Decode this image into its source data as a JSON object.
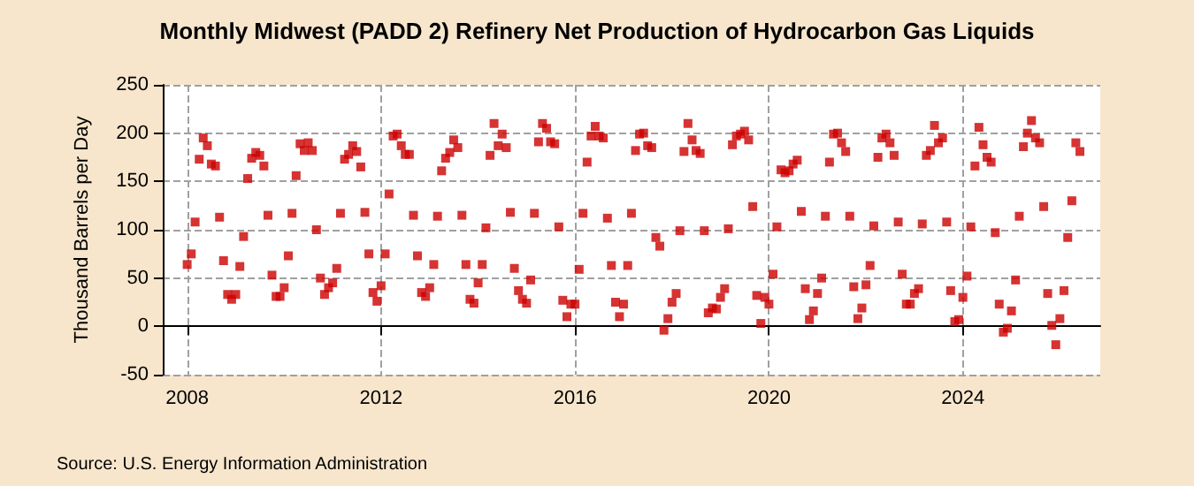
{
  "chart_data": {
    "type": "scatter",
    "title": "Monthly Midwest (PADD 2) Refinery Net Production of Hydrocarbon Gas Liquids",
    "ylabel": "Thousand Barrels per Day",
    "annotations": [
      "Source: U.S. Energy Information Administration"
    ],
    "marker": "square",
    "grid": true,
    "xlim": [
      "2007-07",
      "2026-11"
    ],
    "xticks": [
      "2008",
      "2012",
      "2016",
      "2020",
      "2024"
    ],
    "ylim": [
      -50,
      250
    ],
    "yticks": [
      -50,
      0,
      50,
      100,
      150,
      200,
      250
    ],
    "series": [
      {
        "color": "#cc0000",
        "x": [
          "2008-01",
          "2008-02",
          "2008-03",
          "2008-04",
          "2008-05",
          "2008-06",
          "2008-07",
          "2008-08",
          "2008-09",
          "2008-10",
          "2008-11",
          "2008-12",
          "2009-01",
          "2009-02",
          "2009-03",
          "2009-04",
          "2009-05",
          "2009-06",
          "2009-07",
          "2009-08",
          "2009-09",
          "2009-10",
          "2009-11",
          "2009-12",
          "2010-01",
          "2010-02",
          "2010-03",
          "2010-04",
          "2010-05",
          "2010-06",
          "2010-07",
          "2010-08",
          "2010-09",
          "2010-10",
          "2010-11",
          "2010-12",
          "2011-01",
          "2011-02",
          "2011-03",
          "2011-04",
          "2011-05",
          "2011-06",
          "2011-07",
          "2011-08",
          "2011-09",
          "2011-10",
          "2011-11",
          "2011-12",
          "2012-01",
          "2012-02",
          "2012-03",
          "2012-04",
          "2012-05",
          "2012-06",
          "2012-07",
          "2012-08",
          "2012-09",
          "2012-10",
          "2012-11",
          "2012-12",
          "2013-01",
          "2013-02",
          "2013-03",
          "2013-04",
          "2013-05",
          "2013-06",
          "2013-07",
          "2013-08",
          "2013-09",
          "2013-10",
          "2013-11",
          "2013-12",
          "2014-01",
          "2014-02",
          "2014-03",
          "2014-04",
          "2014-05",
          "2014-06",
          "2014-07",
          "2014-08",
          "2014-09",
          "2014-10",
          "2014-11",
          "2014-12",
          "2015-01",
          "2015-02",
          "2015-03",
          "2015-04",
          "2015-05",
          "2015-06",
          "2015-07",
          "2015-08",
          "2015-09",
          "2015-10",
          "2015-11",
          "2015-12",
          "2016-01",
          "2016-02",
          "2016-03",
          "2016-04",
          "2016-05",
          "2016-06",
          "2016-07",
          "2016-08",
          "2016-09",
          "2016-10",
          "2016-11",
          "2016-12",
          "2017-01",
          "2017-02",
          "2017-03",
          "2017-04",
          "2017-05",
          "2017-06",
          "2017-07",
          "2017-08",
          "2017-09",
          "2017-10",
          "2017-11",
          "2017-12",
          "2018-01",
          "2018-02",
          "2018-03",
          "2018-04",
          "2018-05",
          "2018-06",
          "2018-07",
          "2018-08",
          "2018-09",
          "2018-10",
          "2018-11",
          "2018-12",
          "2019-01",
          "2019-02",
          "2019-03",
          "2019-04",
          "2019-05",
          "2019-06",
          "2019-07",
          "2019-08",
          "2019-09",
          "2019-10",
          "2019-11",
          "2019-12",
          "2020-01",
          "2020-02",
          "2020-03",
          "2020-04",
          "2020-05",
          "2020-06",
          "2020-07",
          "2020-08",
          "2020-09",
          "2020-10",
          "2020-11",
          "2020-12",
          "2021-01",
          "2021-02",
          "2021-03",
          "2021-04",
          "2021-05",
          "2021-06",
          "2021-07",
          "2021-08",
          "2021-09",
          "2021-10",
          "2021-11",
          "2021-12",
          "2022-01",
          "2022-02",
          "2022-03",
          "2022-04",
          "2022-05",
          "2022-06",
          "2022-07",
          "2022-08",
          "2022-09",
          "2022-10",
          "2022-11",
          "2022-12",
          "2023-01",
          "2023-02",
          "2023-03",
          "2023-04",
          "2023-05",
          "2023-06",
          "2023-07",
          "2023-08",
          "2023-09",
          "2023-10",
          "2023-11",
          "2023-12",
          "2024-01",
          "2024-02",
          "2024-03",
          "2024-04",
          "2024-05",
          "2024-06",
          "2024-07",
          "2024-08",
          "2024-09",
          "2024-10",
          "2024-11",
          "2024-12",
          "2025-01",
          "2025-02",
          "2025-03",
          "2025-04",
          "2025-05",
          "2025-06",
          "2025-07",
          "2025-08",
          "2025-09",
          "2025-10",
          "2025-11",
          "2025-12",
          "2026-01",
          "2026-02",
          "2026-03",
          "2026-04",
          "2026-05",
          "2026-06"
        ],
        "values": [
          64,
          75,
          108,
          173,
          195,
          187,
          168,
          166,
          113,
          68,
          33,
          28,
          33,
          62,
          93,
          153,
          174,
          180,
          177,
          166,
          115,
          53,
          31,
          31,
          40,
          73,
          117,
          156,
          189,
          182,
          190,
          182,
          100,
          50,
          33,
          40,
          45,
          60,
          117,
          173,
          178,
          187,
          181,
          165,
          118,
          75,
          35,
          26,
          42,
          75,
          137,
          197,
          199,
          187,
          178,
          178,
          115,
          73,
          35,
          31,
          40,
          64,
          114,
          161,
          174,
          180,
          193,
          185,
          115,
          64,
          28,
          24,
          45,
          64,
          102,
          177,
          210,
          187,
          199,
          185,
          118,
          60,
          37,
          28,
          24,
          48,
          117,
          191,
          210,
          205,
          191,
          189,
          103,
          27,
          10,
          23,
          23,
          59,
          117,
          170,
          197,
          207,
          197,
          195,
          112,
          63,
          25,
          10,
          23,
          63,
          117,
          182,
          199,
          200,
          187,
          185,
          92,
          83,
          -4,
          8,
          25,
          34,
          99,
          181,
          210,
          193,
          182,
          179,
          99,
          14,
          19,
          18,
          30,
          39,
          101,
          188,
          197,
          199,
          202,
          193,
          124,
          32,
          3,
          30,
          23,
          54,
          103,
          162,
          159,
          161,
          168,
          172,
          119,
          39,
          7,
          16,
          34,
          50,
          114,
          170,
          199,
          200,
          190,
          181,
          114,
          41,
          8,
          19,
          43,
          63,
          104,
          175,
          195,
          199,
          190,
          177,
          108,
          54,
          23,
          23,
          34,
          39,
          106,
          177,
          182,
          208,
          190,
          195,
          108,
          37,
          5,
          7,
          30,
          52,
          103,
          166,
          206,
          188,
          175,
          170,
          97,
          23,
          -6,
          -2,
          16,
          48,
          114,
          186,
          200,
          213,
          195,
          190,
          124,
          34,
          1,
          -19,
          8,
          37,
          92,
          130,
          190,
          181
        ]
      }
    ]
  }
}
